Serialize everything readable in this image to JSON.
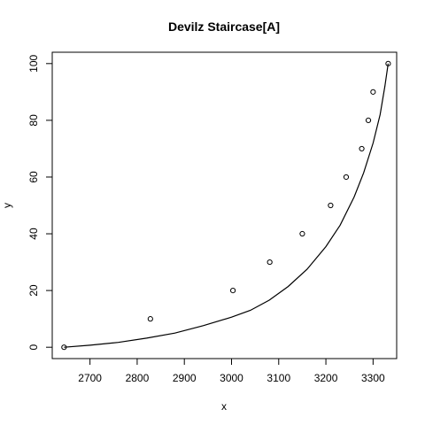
{
  "chart_data": {
    "type": "scatter",
    "title": "Devilz Staircase[A]",
    "xlabel": "x",
    "ylabel": "y",
    "xlim": [
      2620,
      3350
    ],
    "ylim": [
      -4,
      104
    ],
    "x_ticks": [
      2700,
      2800,
      2900,
      3000,
      3100,
      3200,
      3300
    ],
    "y_ticks": [
      0,
      20,
      40,
      60,
      80,
      100
    ],
    "grid": false,
    "points": {
      "x": [
        2645,
        2828,
        3003,
        3081,
        3150,
        3210,
        3243,
        3276,
        3290,
        3300,
        3332
      ],
      "y": [
        0,
        10,
        20,
        30,
        40,
        50,
        60,
        70,
        80,
        90,
        100
      ]
    },
    "fitted_curve": {
      "x": [
        2645,
        2700,
        2760,
        2820,
        2880,
        2940,
        3000,
        3040,
        3080,
        3120,
        3160,
        3200,
        3230,
        3260,
        3280,
        3300,
        3315,
        3325,
        3332
      ],
      "y": [
        0,
        0.7,
        1.7,
        3.2,
        5.0,
        7.6,
        10.6,
        13.0,
        16.6,
        21.4,
        27.5,
        35.5,
        43.0,
        53.0,
        61.5,
        72.0,
        82.0,
        92.0,
        100.0
      ]
    }
  }
}
